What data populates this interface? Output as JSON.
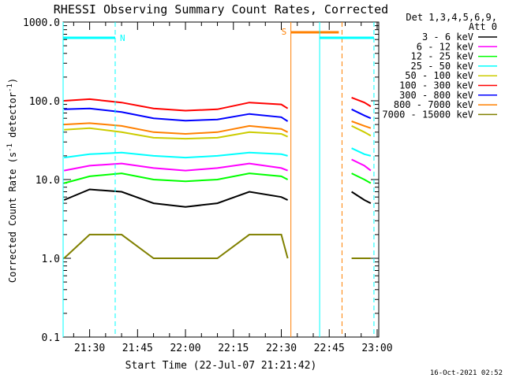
{
  "chart_data": {
    "type": "line",
    "title": "RHESSI Observing Summary Count Rates, Corrected",
    "xlabel": "Start Time (22-Jul-07 21:21:42)",
    "ylabel_main": "Corrected Count Rate (s",
    "ylabel_sup1": "-1",
    "ylabel_mid": " detector",
    "ylabel_sup2": "-1",
    "ylabel_end": ")",
    "yscale": "log",
    "ylim": [
      0.1,
      1000
    ],
    "xlim": [
      "21:21:42",
      "23:00:30"
    ],
    "y_ticks": [
      0.1,
      1.0,
      10.0,
      100.0,
      1000.0
    ],
    "y_tick_labels": [
      "0.1",
      "1.0",
      "10.0",
      "100.0",
      "1000.0"
    ],
    "x_ticks": [
      "21:30",
      "21:45",
      "22:00",
      "22:15",
      "22:30",
      "22:45",
      "23:00"
    ],
    "x_tick_labels": [
      "21:30",
      "21:45",
      "22:00",
      "22:15",
      "22:30",
      "22:45",
      "23:00"
    ],
    "legend_title_line1": "Det 1,3,4,5,6,9,",
    "legend_title_line2": "Att 0",
    "legend_position": "right",
    "series": [
      {
        "name": "3 - 6 keV",
        "color": "#000000",
        "x": [
          "21:22",
          "21:30",
          "21:40",
          "21:50",
          "22:00",
          "22:10",
          "22:20",
          "22:30",
          "22:32"
        ],
        "y": [
          5.5,
          7.5,
          7.0,
          5.0,
          4.5,
          5.0,
          7.0,
          6.0,
          5.5
        ],
        "x2": [
          "22:52",
          "22:56",
          "22:58"
        ],
        "y2": [
          7.0,
          5.5,
          5.0
        ]
      },
      {
        "name": "6 - 12 keV",
        "color": "#ff00ff",
        "x": [
          "21:22",
          "21:30",
          "21:40",
          "21:50",
          "22:00",
          "22:10",
          "22:20",
          "22:30",
          "22:32"
        ],
        "y": [
          13,
          15,
          16,
          14,
          13,
          14,
          16,
          14,
          13
        ],
        "x2": [
          "22:52",
          "22:56",
          "22:58"
        ],
        "y2": [
          18,
          15,
          13
        ]
      },
      {
        "name": "12 - 25 keV",
        "color": "#00ff00",
        "x": [
          "21:22",
          "21:30",
          "21:40",
          "21:50",
          "22:00",
          "22:10",
          "22:20",
          "22:30",
          "22:32"
        ],
        "y": [
          9,
          11,
          12,
          10,
          9.5,
          10,
          12,
          11,
          10
        ],
        "x2": [
          "22:52",
          "22:56",
          "22:58"
        ],
        "y2": [
          12,
          10,
          9
        ]
      },
      {
        "name": "25 - 50 keV",
        "color": "#00ffff",
        "x": [
          "21:22",
          "21:30",
          "21:40",
          "21:50",
          "22:00",
          "22:10",
          "22:20",
          "22:30",
          "22:32"
        ],
        "y": [
          19,
          21,
          22,
          20,
          19,
          20,
          22,
          21,
          20
        ],
        "x2": [
          "22:52",
          "22:56",
          "22:58"
        ],
        "y2": [
          25,
          21,
          20
        ]
      },
      {
        "name": "50 - 100 keV",
        "color": "#cccc00",
        "x": [
          "21:22",
          "21:30",
          "21:40",
          "21:50",
          "22:00",
          "22:10",
          "22:20",
          "22:30",
          "22:32"
        ],
        "y": [
          43,
          45,
          40,
          34,
          33,
          34,
          40,
          38,
          35
        ],
        "x2": [
          "22:52",
          "22:56",
          "22:58"
        ],
        "y2": [
          48,
          40,
          36
        ]
      },
      {
        "name": "100 - 300 keV",
        "color": "#ff0000",
        "x": [
          "21:22",
          "21:30",
          "21:40",
          "21:50",
          "22:00",
          "22:10",
          "22:20",
          "22:30",
          "22:32"
        ],
        "y": [
          100,
          105,
          95,
          80,
          75,
          78,
          95,
          90,
          80
        ],
        "x2": [
          "22:52",
          "22:56",
          "22:58"
        ],
        "y2": [
          110,
          95,
          85
        ]
      },
      {
        "name": "300 - 800 keV",
        "color": "#0000ff",
        "x": [
          "21:22",
          "21:30",
          "21:40",
          "21:50",
          "22:00",
          "22:10",
          "22:20",
          "22:30",
          "22:32"
        ],
        "y": [
          78,
          80,
          72,
          60,
          56,
          58,
          68,
          62,
          55
        ],
        "x2": [
          "22:52",
          "22:56",
          "22:58"
        ],
        "y2": [
          78,
          65,
          60
        ]
      },
      {
        "name": "800 - 7000 keV",
        "color": "#ff8000",
        "x": [
          "21:22",
          "21:30",
          "21:40",
          "21:50",
          "22:00",
          "22:10",
          "22:20",
          "22:30",
          "22:32"
        ],
        "y": [
          50,
          52,
          48,
          40,
          38,
          40,
          48,
          44,
          40
        ],
        "x2": [
          "22:52",
          "22:56",
          "22:58"
        ],
        "y2": [
          55,
          48,
          45
        ]
      },
      {
        "name": "7000 - 15000 keV",
        "color": "#808000",
        "x": [
          "21:22",
          "21:30",
          "21:40",
          "21:50",
          "22:00",
          "22:10",
          "22:20",
          "22:30",
          "22:32"
        ],
        "y": [
          1,
          2,
          2,
          1,
          1,
          1,
          2,
          2,
          1
        ],
        "x2": [
          "22:52",
          "22:56",
          "22:58"
        ],
        "y2": [
          1,
          1,
          1
        ]
      }
    ],
    "annotations": [
      {
        "label": "N",
        "color": "#00ffff"
      },
      {
        "label": "S",
        "color": "#ff8000"
      }
    ],
    "footer": "16-Oct-2021 02:52"
  }
}
